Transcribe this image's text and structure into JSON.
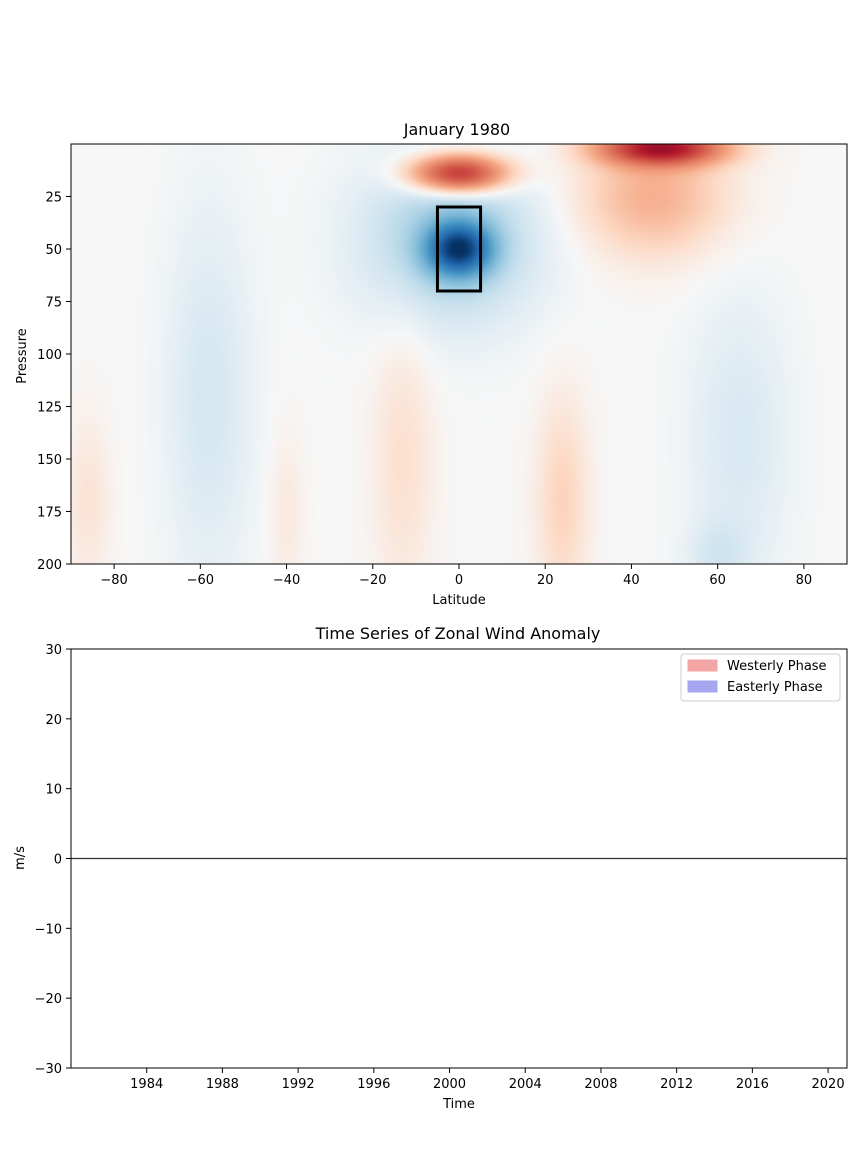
{
  "chart_data": [
    {
      "type": "heatmap",
      "title": "January 1980",
      "xlabel": "Latitude",
      "ylabel": "Pressure",
      "xlim": [
        -90,
        90
      ],
      "ylim": [
        200,
        0
      ],
      "x_ticks": [
        -80,
        -60,
        -40,
        -20,
        0,
        20,
        40,
        60,
        80
      ],
      "y_ticks": [
        25,
        50,
        75,
        100,
        125,
        150,
        175,
        200
      ],
      "x_tick_labels": [
        "−80",
        "−60",
        "−40",
        "−20",
        "0",
        "20",
        "40",
        "60",
        "80"
      ],
      "y_tick_labels": [
        "25",
        "50",
        "75",
        "100",
        "125",
        "150",
        "175",
        "200"
      ],
      "colormap": "RdBu_r",
      "color_range": [
        -1,
        1
      ],
      "features": [
        {
          "sign": "positive",
          "lat": 0,
          "pressure": 14,
          "lat_width": 11,
          "p_width": 9,
          "amp": 0.72
        },
        {
          "sign": "negative",
          "lat": 0,
          "pressure": 50,
          "lat_width": 7,
          "p_width": 12,
          "amp": -0.82
        },
        {
          "sign": "negative",
          "lat": -2,
          "pressure": 45,
          "lat_width": 20,
          "p_width": 40,
          "amp": -0.22
        },
        {
          "sign": "positive",
          "lat": 47,
          "pressure": 2,
          "lat_width": 14,
          "p_width": 8,
          "amp": 0.72
        },
        {
          "sign": "positive",
          "lat": 45,
          "pressure": 25,
          "lat_width": 17,
          "p_width": 28,
          "amp": 0.22
        },
        {
          "sign": "negative",
          "lat": -58,
          "pressure": 120,
          "lat_width": 10,
          "p_width": 90,
          "amp": -0.09
        },
        {
          "sign": "negative",
          "lat": 65,
          "pressure": 140,
          "lat_width": 12,
          "p_width": 70,
          "amp": -0.08
        },
        {
          "sign": "negative",
          "lat": 60,
          "pressure": 195,
          "lat_width": 7,
          "p_width": 15,
          "amp": -0.07
        },
        {
          "sign": "positive",
          "lat": -13,
          "pressure": 150,
          "lat_width": 7,
          "p_width": 70,
          "amp": 0.08
        },
        {
          "sign": "positive",
          "lat": 24,
          "pressure": 170,
          "lat_width": 6,
          "p_width": 50,
          "amp": 0.12
        },
        {
          "sign": "positive",
          "lat": -86,
          "pressure": 170,
          "lat_width": 5,
          "p_width": 40,
          "amp": 0.07
        },
        {
          "sign": "positive",
          "lat": -40,
          "pressure": 175,
          "lat_width": 4,
          "p_width": 40,
          "amp": 0.05
        }
      ],
      "box": {
        "lat": [
          -5,
          5
        ],
        "pressure": [
          30,
          70
        ],
        "color": "#000000"
      }
    },
    {
      "type": "area",
      "title": "Time Series of Zonal Wind Anomaly",
      "xlabel": "Time",
      "ylabel": "m/s",
      "xlim": [
        1980,
        2021
      ],
      "ylim": [
        -30,
        30
      ],
      "x_ticks": [
        1984,
        1988,
        1992,
        1996,
        2000,
        2004,
        2008,
        2012,
        2016,
        2020
      ],
      "x_tick_labels": [
        "1984",
        "1988",
        "1992",
        "1996",
        "2000",
        "2004",
        "2008",
        "2012",
        "2016",
        "2020"
      ],
      "y_ticks": [
        -30,
        -20,
        -10,
        0,
        10,
        20,
        30
      ],
      "y_tick_labels": [
        "−30",
        "−20",
        "−10",
        "0",
        "10",
        "20",
        "30"
      ],
      "zero_line": 0,
      "series": [
        {
          "name": "Westerly Phase",
          "color": "#f4a6a6",
          "values": []
        },
        {
          "name": "Easterly Phase",
          "color": "#a6a6f0",
          "values": []
        }
      ],
      "legend": "top-right"
    }
  ]
}
